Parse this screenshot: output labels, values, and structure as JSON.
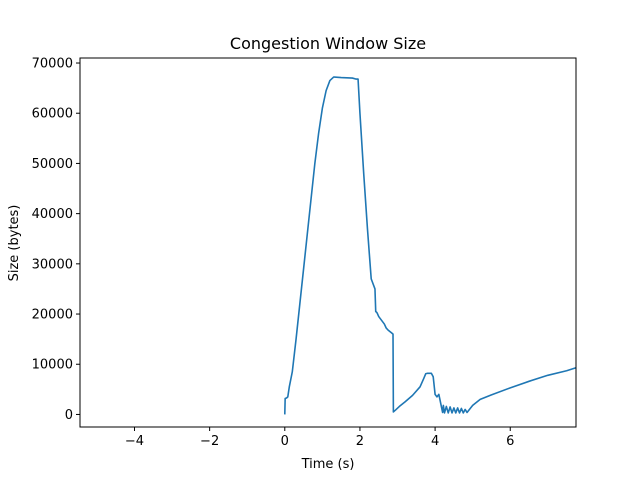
{
  "chart_data": {
    "type": "line",
    "title": "Congestion Window Size",
    "xlabel": "Time (s)",
    "ylabel": "Size (bytes)",
    "xlim": [
      -5.45,
      7.75
    ],
    "ylim": [
      -2500,
      71000
    ],
    "x_ticks": [
      -4,
      -2,
      0,
      2,
      4,
      6
    ],
    "x_tick_labels": [
      "−4",
      "−2",
      "0",
      "2",
      "4",
      "6"
    ],
    "y_ticks": [
      0,
      10000,
      20000,
      30000,
      40000,
      50000,
      60000,
      70000
    ],
    "y_tick_labels": [
      "0",
      "10000",
      "20000",
      "30000",
      "40000",
      "50000",
      "60000",
      "70000"
    ],
    "grid": false,
    "legend": "none",
    "series": [
      {
        "color": "#1f77b4",
        "x": [
          0.0,
          0.01,
          0.02,
          0.05,
          0.08,
          0.12,
          0.2,
          0.3,
          0.4,
          0.5,
          0.6,
          0.7,
          0.8,
          0.9,
          1.0,
          1.1,
          1.2,
          1.3,
          1.32,
          1.5,
          1.8,
          1.9,
          1.95,
          2.0,
          2.1,
          2.2,
          2.3,
          2.4,
          2.42,
          2.45,
          2.47,
          2.5,
          2.55,
          2.6,
          2.65,
          2.7,
          2.75,
          2.8,
          2.85,
          2.88,
          2.89,
          2.95,
          3.05,
          3.2,
          3.4,
          3.6,
          3.7,
          3.75,
          3.8,
          3.9,
          3.95,
          4.0,
          4.05,
          4.1,
          4.15,
          4.2,
          4.22,
          4.25,
          4.3,
          4.35,
          4.4,
          4.45,
          4.5,
          4.55,
          4.6,
          4.65,
          4.7,
          4.75,
          4.8,
          4.85,
          5.0,
          5.2,
          5.5,
          6.0,
          6.5,
          7.0,
          7.5,
          7.75
        ],
        "y": [
          0,
          3200,
          3200,
          3300,
          3500,
          5500,
          8500,
          15000,
          22000,
          29000,
          36000,
          43000,
          50000,
          56000,
          61000,
          64500,
          66500,
          67200,
          67200,
          67100,
          67000,
          66800,
          66800,
          60000,
          48000,
          37000,
          27000,
          25000,
          20500,
          20300,
          20000,
          19500,
          19000,
          18500,
          18000,
          17200,
          16800,
          16500,
          16200,
          16000,
          500,
          900,
          1600,
          2500,
          3800,
          5500,
          7200,
          8100,
          8200,
          8200,
          7500,
          4000,
          3500,
          4000,
          2200,
          400,
          1800,
          300,
          1600,
          300,
          1500,
          300,
          1300,
          300,
          1300,
          300,
          1200,
          300,
          1000,
          400,
          1800,
          3000,
          3900,
          5300,
          6600,
          7800,
          8700,
          9300
        ]
      }
    ]
  }
}
